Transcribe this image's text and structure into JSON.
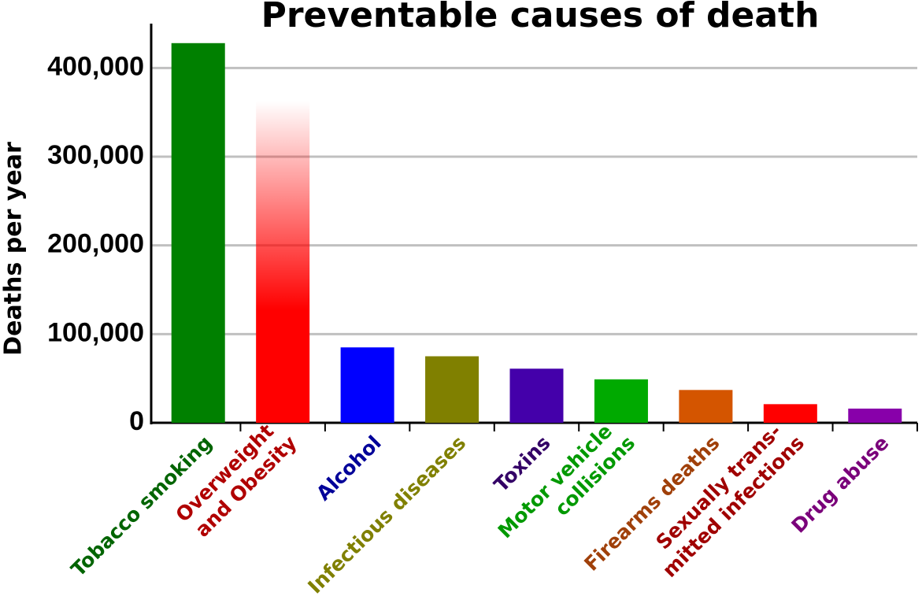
{
  "chart_data": {
    "type": "bar",
    "title": "Preventable causes of death",
    "y_label": "Deaths per year",
    "categories": [
      [
        "Tobacco smoking"
      ],
      [
        "Overweight",
        "and Obesity"
      ],
      [
        "Alcohol"
      ],
      [
        "Infectious diseases"
      ],
      [
        "Toxins"
      ],
      [
        "Motor vehicle",
        "collisions"
      ],
      [
        "Firearms deaths"
      ],
      [
        "Sexually trans-",
        "mitted infections"
      ],
      [
        "Drug abuse"
      ]
    ],
    "values": [
      428000,
      363000,
      85000,
      75000,
      61000,
      49000,
      37000,
      21000,
      16000
    ],
    "colors": [
      "#008000",
      "#ff0000",
      "#0000ff",
      "#808000",
      "#4400aa",
      "#00aa00",
      "#d45500",
      "#ff0000",
      "#8800aa"
    ],
    "label_colors": [
      "#006400",
      "#b00000",
      "#000099",
      "#808000",
      "#330066",
      "#009900",
      "#a0400a",
      "#a00000",
      "#7a007a"
    ],
    "ylim": [
      0,
      450000
    ],
    "yticks": [
      0,
      {
        "value": 100000,
        "label": "100,000"
      },
      {
        "value": 200000,
        "label": "200,000"
      },
      {
        "value": 300000,
        "label": "300,000"
      },
      {
        "value": 400000,
        "label": "400,000"
      }
    ],
    "grid": true
  }
}
